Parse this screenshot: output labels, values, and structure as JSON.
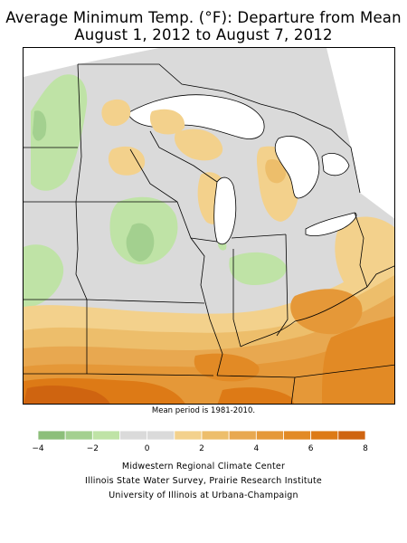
{
  "title": {
    "line1": "Average Minimum Temp. (°F): Departure from Mean",
    "line2": "August 1, 2012 to August 7, 2012"
  },
  "mean_note": "Mean period is 1981-2010.",
  "legend": {
    "ticks": [
      "−4",
      "−2",
      "0",
      "2",
      "4",
      "6",
      "8"
    ],
    "bins": [
      {
        "from": -4,
        "to": -3,
        "color": "#8cbf7a"
      },
      {
        "from": -3,
        "to": -2,
        "color": "#a3d08f"
      },
      {
        "from": -2,
        "to": -1,
        "color": "#bfe3a6"
      },
      {
        "from": -1,
        "to": 0,
        "color": "#dadada"
      },
      {
        "from": 0,
        "to": 1,
        "color": "#dadada"
      },
      {
        "from": 1,
        "to": 2,
        "color": "#f3d18c"
      },
      {
        "from": 2,
        "to": 3,
        "color": "#edbe6b"
      },
      {
        "from": 3,
        "to": 4,
        "color": "#e8a850"
      },
      {
        "from": 4,
        "to": 5,
        "color": "#e59838"
      },
      {
        "from": 5,
        "to": 6,
        "color": "#e28a25"
      },
      {
        "from": 6,
        "to": 7,
        "color": "#dd7a16"
      },
      {
        "from": 7,
        "to": 8,
        "color": "#cf6410"
      }
    ]
  },
  "credits": {
    "line1": "Midwestern Regional Climate Center",
    "line2": "Illinois State Water Survey, Prairie Research Institute",
    "line3": "University of Illinois at Urbana-Champaign"
  }
}
